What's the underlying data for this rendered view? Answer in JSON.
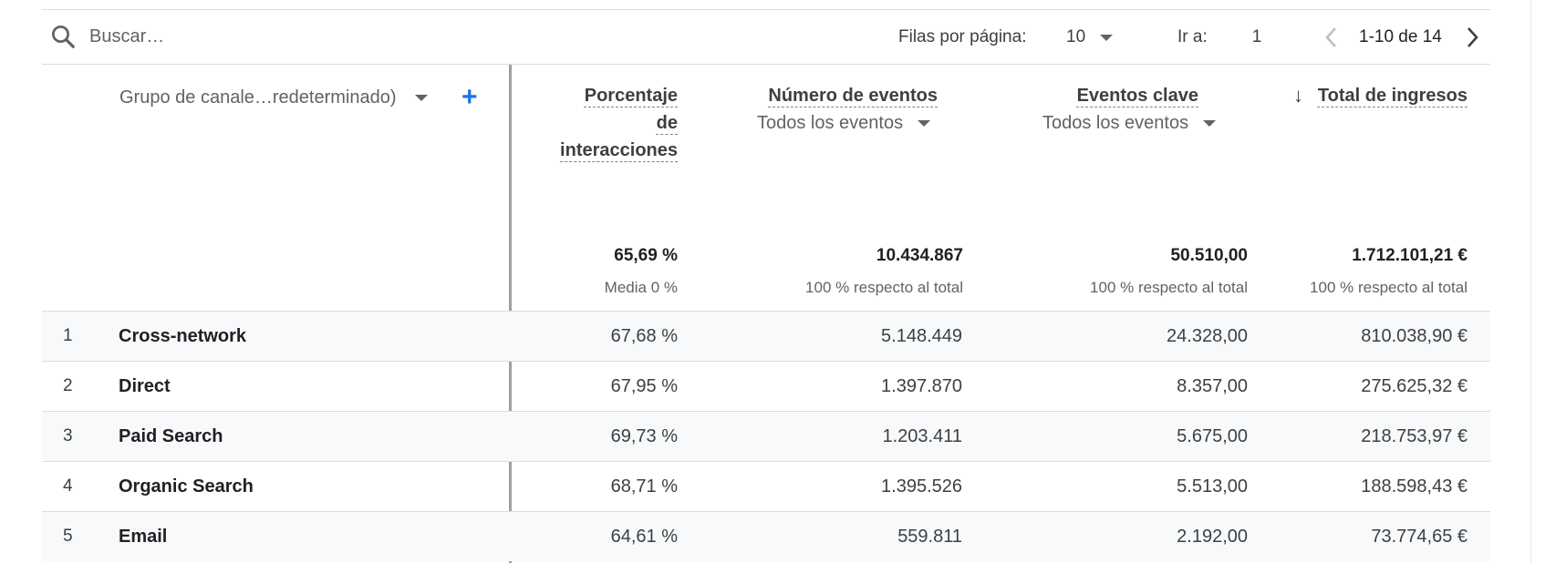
{
  "search": {
    "placeholder": "Buscar…"
  },
  "pagination": {
    "rows_label": "Filas por página:",
    "rows_value": "10",
    "goto_label": "Ir a:",
    "goto_value": "1",
    "range": "1-10 de 14"
  },
  "dimension": {
    "label": "Grupo de canale…redeterminado)"
  },
  "columns": [
    {
      "lines": [
        "Porcentaje",
        "de",
        "interacciones"
      ],
      "sub": "",
      "total": "65,69 %",
      "total_sub": "Media 0 %"
    },
    {
      "lines": [
        "Número de eventos"
      ],
      "sub": "Todos los eventos",
      "total": "10.434.867",
      "total_sub": "100 % respecto al total"
    },
    {
      "lines": [
        "Eventos clave"
      ],
      "sub": "Todos los eventos",
      "total": "50.510,00",
      "total_sub": "100 % respecto al total"
    },
    {
      "lines": [
        "Total de ingresos"
      ],
      "sub": "",
      "total": "1.712.101,21 €",
      "total_sub": "100 % respecto al total",
      "sorted": "desc"
    }
  ],
  "rows": [
    {
      "idx": "1",
      "name": "Cross-network",
      "v1": "67,68 %",
      "v2": "5.148.449",
      "v3": "24.328,00",
      "v4": "810.038,90 €"
    },
    {
      "idx": "2",
      "name": "Direct",
      "v1": "67,95 %",
      "v2": "1.397.870",
      "v3": "8.357,00",
      "v4": "275.625,32 €"
    },
    {
      "idx": "3",
      "name": "Paid Search",
      "v1": "69,73 %",
      "v2": "1.203.411",
      "v3": "5.675,00",
      "v4": "218.753,97 €"
    },
    {
      "idx": "4",
      "name": "Organic Search",
      "v1": "68,71 %",
      "v2": "1.395.526",
      "v3": "5.513,00",
      "v4": "188.598,43 €"
    },
    {
      "idx": "5",
      "name": "Email",
      "v1": "64,61 %",
      "v2": "559.811",
      "v3": "2.192,00",
      "v4": "73.774,65 €"
    }
  ],
  "colors": {
    "accent": "#1a73e8",
    "stripe": "#f8f9fa",
    "border": "#dadce0"
  },
  "icons": {
    "search": "search-icon",
    "add": "plus-icon",
    "prev": "chevron-left-icon",
    "next": "chevron-right-icon",
    "sort": "arrow-down-icon"
  }
}
